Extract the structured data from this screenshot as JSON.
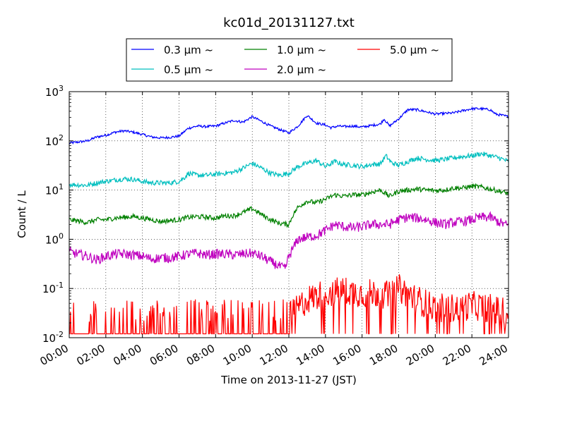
{
  "chart_data": {
    "type": "line",
    "title": "kc01d_20131127.txt",
    "xlabel": "Time on 2013-11-27 (JST)",
    "ylabel": "Count / L",
    "yscale": "log",
    "ylim": [
      0.01,
      1000
    ],
    "xlim": [
      0,
      24
    ],
    "x_tick_labels": [
      "00:00",
      "02:00",
      "04:00",
      "06:00",
      "08:00",
      "10:00",
      "12:00",
      "14:00",
      "16:00",
      "18:00",
      "20:00",
      "22:00",
      "24:00"
    ],
    "y_tick_labels": [
      {
        "base": "10",
        "exp": "-2"
      },
      {
        "base": "10",
        "exp": "-1"
      },
      {
        "base": "10",
        "exp": "0"
      },
      {
        "base": "10",
        "exp": "1"
      },
      {
        "base": "10",
        "exp": "2"
      },
      {
        "base": "10",
        "exp": "3"
      }
    ],
    "grid": true,
    "legend_position": "top-center",
    "series": [
      {
        "name": "0.3 μm  ~",
        "color": "#0000ff",
        "noise": 0.025,
        "points": [
          [
            0,
            90
          ],
          [
            1,
            100
          ],
          [
            1.5,
            120
          ],
          [
            2,
            130
          ],
          [
            2.5,
            150
          ],
          [
            3,
            160
          ],
          [
            3.5,
            150
          ],
          [
            4,
            135
          ],
          [
            4.5,
            120
          ],
          [
            5,
            115
          ],
          [
            5.5,
            118
          ],
          [
            6,
            125
          ],
          [
            6.5,
            180
          ],
          [
            7,
            200
          ],
          [
            7.5,
            195
          ],
          [
            8,
            200
          ],
          [
            8.5,
            230
          ],
          [
            9,
            260
          ],
          [
            9.5,
            240
          ],
          [
            10,
            310
          ],
          [
            10.5,
            250
          ],
          [
            11,
            200
          ],
          [
            11.5,
            170
          ],
          [
            12,
            145
          ],
          [
            12.5,
            200
          ],
          [
            13,
            330
          ],
          [
            13.5,
            230
          ],
          [
            14,
            210
          ],
          [
            14.3,
            185
          ],
          [
            14.7,
            200
          ],
          [
            15,
            195
          ],
          [
            15.5,
            200
          ],
          [
            16,
            190
          ],
          [
            16.5,
            205
          ],
          [
            17,
            220
          ],
          [
            17.2,
            280
          ],
          [
            17.5,
            200
          ],
          [
            18,
            280
          ],
          [
            18.5,
            430
          ],
          [
            19,
            430
          ],
          [
            19.5,
            390
          ],
          [
            20,
            350
          ],
          [
            20.5,
            360
          ],
          [
            21,
            370
          ],
          [
            21.5,
            410
          ],
          [
            22,
            450
          ],
          [
            22.5,
            450
          ],
          [
            23,
            430
          ],
          [
            23.3,
            350
          ],
          [
            24,
            310
          ]
        ]
      },
      {
        "name": "0.5 μm  ~",
        "color": "#00bfbf",
        "noise": 0.05,
        "points": [
          [
            0,
            13
          ],
          [
            1,
            12.5
          ],
          [
            1.5,
            14
          ],
          [
            2,
            15
          ],
          [
            2.5,
            16
          ],
          [
            3,
            17
          ],
          [
            3.5,
            16.5
          ],
          [
            4,
            15
          ],
          [
            4.5,
            14
          ],
          [
            5,
            14
          ],
          [
            5.5,
            14
          ],
          [
            6,
            15
          ],
          [
            6.3,
            18
          ],
          [
            6.5,
            22
          ],
          [
            7,
            20
          ],
          [
            7.5,
            20
          ],
          [
            8,
            21
          ],
          [
            8.5,
            22
          ],
          [
            9,
            23
          ],
          [
            9.5,
            28
          ],
          [
            10,
            35
          ],
          [
            10.5,
            28
          ],
          [
            11,
            22
          ],
          [
            11.5,
            20
          ],
          [
            12,
            22
          ],
          [
            12.5,
            30
          ],
          [
            13,
            35
          ],
          [
            13.5,
            40
          ],
          [
            14,
            30
          ],
          [
            14.5,
            38
          ],
          [
            15,
            33
          ],
          [
            15.5,
            32
          ],
          [
            16,
            30
          ],
          [
            16.5,
            33
          ],
          [
            17,
            34
          ],
          [
            17.3,
            50
          ],
          [
            17.6,
            36
          ],
          [
            18,
            32
          ],
          [
            18.5,
            38
          ],
          [
            19,
            45
          ],
          [
            19.5,
            42
          ],
          [
            20,
            40
          ],
          [
            20.5,
            42
          ],
          [
            21,
            45
          ],
          [
            21.5,
            48
          ],
          [
            22,
            50
          ],
          [
            22.5,
            55
          ],
          [
            23,
            50
          ],
          [
            23.5,
            45
          ],
          [
            24,
            38
          ]
        ]
      },
      {
        "name": "1.0 μm  ~",
        "color": "#008000",
        "noise": 0.05,
        "points": [
          [
            0,
            2.5
          ],
          [
            1,
            2.2
          ],
          [
            1.5,
            2.5
          ],
          [
            2,
            2.5
          ],
          [
            2.5,
            2.7
          ],
          [
            3,
            2.8
          ],
          [
            3.5,
            2.9
          ],
          [
            4,
            2.7
          ],
          [
            4.5,
            2.5
          ],
          [
            5,
            2.3
          ],
          [
            5.5,
            2.4
          ],
          [
            6,
            2.5
          ],
          [
            6.5,
            2.8
          ],
          [
            7,
            2.9
          ],
          [
            7.5,
            2.8
          ],
          [
            8,
            2.7
          ],
          [
            8.5,
            3
          ],
          [
            9,
            3
          ],
          [
            9.5,
            3.5
          ],
          [
            10,
            4.2
          ],
          [
            10.5,
            3.2
          ],
          [
            11,
            2.5
          ],
          [
            11.5,
            2.1
          ],
          [
            12,
            2
          ],
          [
            12.2,
            3
          ],
          [
            12.5,
            4.5
          ],
          [
            13,
            6
          ],
          [
            13.5,
            5.5
          ],
          [
            14,
            6.5
          ],
          [
            14.5,
            8
          ],
          [
            15,
            7.5
          ],
          [
            15.5,
            8
          ],
          [
            16,
            8
          ],
          [
            16.5,
            9
          ],
          [
            17,
            10
          ],
          [
            17.5,
            7.5
          ],
          [
            18,
            9.5
          ],
          [
            18.5,
            10
          ],
          [
            19,
            10.5
          ],
          [
            19.5,
            10
          ],
          [
            20,
            9.8
          ],
          [
            20.5,
            10
          ],
          [
            21,
            11
          ],
          [
            21.5,
            11
          ],
          [
            22,
            12
          ],
          [
            22.5,
            11.5
          ],
          [
            23,
            10.5
          ],
          [
            23.5,
            9.5
          ],
          [
            24,
            8.5
          ]
        ]
      },
      {
        "name": "2.0 μm  ~",
        "color": "#bf00bf",
        "noise": 0.1,
        "points": [
          [
            0,
            0.55
          ],
          [
            0.5,
            0.5
          ],
          [
            1,
            0.45
          ],
          [
            1.5,
            0.38
          ],
          [
            2,
            0.45
          ],
          [
            2.5,
            0.5
          ],
          [
            3,
            0.5
          ],
          [
            3.5,
            0.48
          ],
          [
            4,
            0.45
          ],
          [
            4.5,
            0.4
          ],
          [
            5,
            0.42
          ],
          [
            5.5,
            0.42
          ],
          [
            6,
            0.45
          ],
          [
            6.5,
            0.5
          ],
          [
            7,
            0.52
          ],
          [
            7.5,
            0.48
          ],
          [
            8,
            0.5
          ],
          [
            8.5,
            0.5
          ],
          [
            9,
            0.48
          ],
          [
            9.5,
            0.5
          ],
          [
            10,
            0.52
          ],
          [
            10.5,
            0.45
          ],
          [
            11,
            0.35
          ],
          [
            11.5,
            0.28
          ],
          [
            11.8,
            0.25
          ],
          [
            12,
            0.45
          ],
          [
            12.5,
            1
          ],
          [
            13,
            1.1
          ],
          [
            13.5,
            1.2
          ],
          [
            14,
            1.5
          ],
          [
            14.5,
            2
          ],
          [
            15,
            1.8
          ],
          [
            15.5,
            1.7
          ],
          [
            16,
            1.8
          ],
          [
            16.5,
            2
          ],
          [
            17,
            2
          ],
          [
            17.5,
            2
          ],
          [
            18,
            2.5
          ],
          [
            18.5,
            2.8
          ],
          [
            19,
            2.7
          ],
          [
            19.5,
            2.5
          ],
          [
            20,
            2.2
          ],
          [
            20.5,
            2
          ],
          [
            21,
            2.2
          ],
          [
            21.5,
            2.3
          ],
          [
            22,
            2.5
          ],
          [
            22.5,
            2.8
          ],
          [
            23,
            2.8
          ],
          [
            23.5,
            2.2
          ],
          [
            24,
            1.9
          ]
        ]
      },
      {
        "name": "5.0 μm  ~",
        "color": "#ff0000",
        "noise": 0.3,
        "points": [
          [
            0,
            0.012
          ],
          [
            2,
            0.015
          ],
          [
            4,
            0.015
          ],
          [
            6,
            0.016
          ],
          [
            8,
            0.017
          ],
          [
            10,
            0.018
          ],
          [
            11.5,
            0.02
          ],
          [
            12,
            0.025
          ],
          [
            12.5,
            0.04
          ],
          [
            13,
            0.06
          ],
          [
            14,
            0.08
          ],
          [
            15,
            0.09
          ],
          [
            16,
            0.08
          ],
          [
            17,
            0.08
          ],
          [
            17.5,
            0.07
          ],
          [
            18,
            0.1
          ],
          [
            18.5,
            0.08
          ],
          [
            19,
            0.06
          ],
          [
            20,
            0.04
          ],
          [
            21,
            0.04
          ],
          [
            22,
            0.045
          ],
          [
            23,
            0.04
          ],
          [
            24,
            0.03
          ]
        ]
      }
    ]
  }
}
